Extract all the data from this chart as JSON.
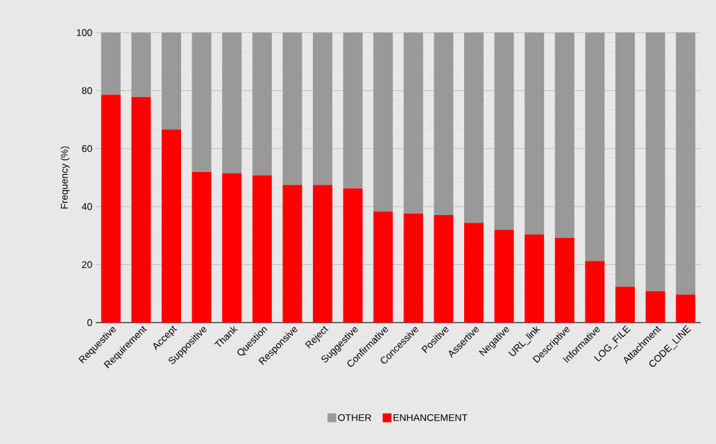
{
  "chart_data": {
    "type": "bar",
    "stacked": true,
    "ylabel": "Frequency (%)",
    "categories": [
      "Requestive",
      "Requirement",
      "Accept",
      "Suppositive",
      "Thank",
      "Question",
      "Responsive",
      "Reject",
      "Suggestive",
      "Confirmative",
      "Concessive",
      "Positive",
      "Assertive",
      "Negative",
      "URL_link",
      "Descriptive",
      "Informative",
      "LOG_FILE",
      "Attachment",
      "CODE_LINE"
    ],
    "series": [
      {
        "name": "ENHANCEMENT",
        "color": "#ff0000",
        "values": [
          78.6,
          77.8,
          66.6,
          51.9,
          51.5,
          50.8,
          47.5,
          47.5,
          46.3,
          38.3,
          37.6,
          37.1,
          34.4,
          32.0,
          30.4,
          29.2,
          21.2,
          12.4,
          10.8,
          9.7
        ]
      },
      {
        "name": "OTHER",
        "color": "#999999",
        "values": [
          21.4,
          22.2,
          33.4,
          48.1,
          48.5,
          49.2,
          52.5,
          52.5,
          53.7,
          61.7,
          62.4,
          62.9,
          65.6,
          68.0,
          69.6,
          70.8,
          78.8,
          87.6,
          89.2,
          90.3
        ]
      }
    ],
    "ylim": [
      0,
      100
    ],
    "yticks": [
      0,
      20,
      40,
      60,
      80,
      100
    ],
    "grid": "y",
    "legend": "bottom"
  }
}
